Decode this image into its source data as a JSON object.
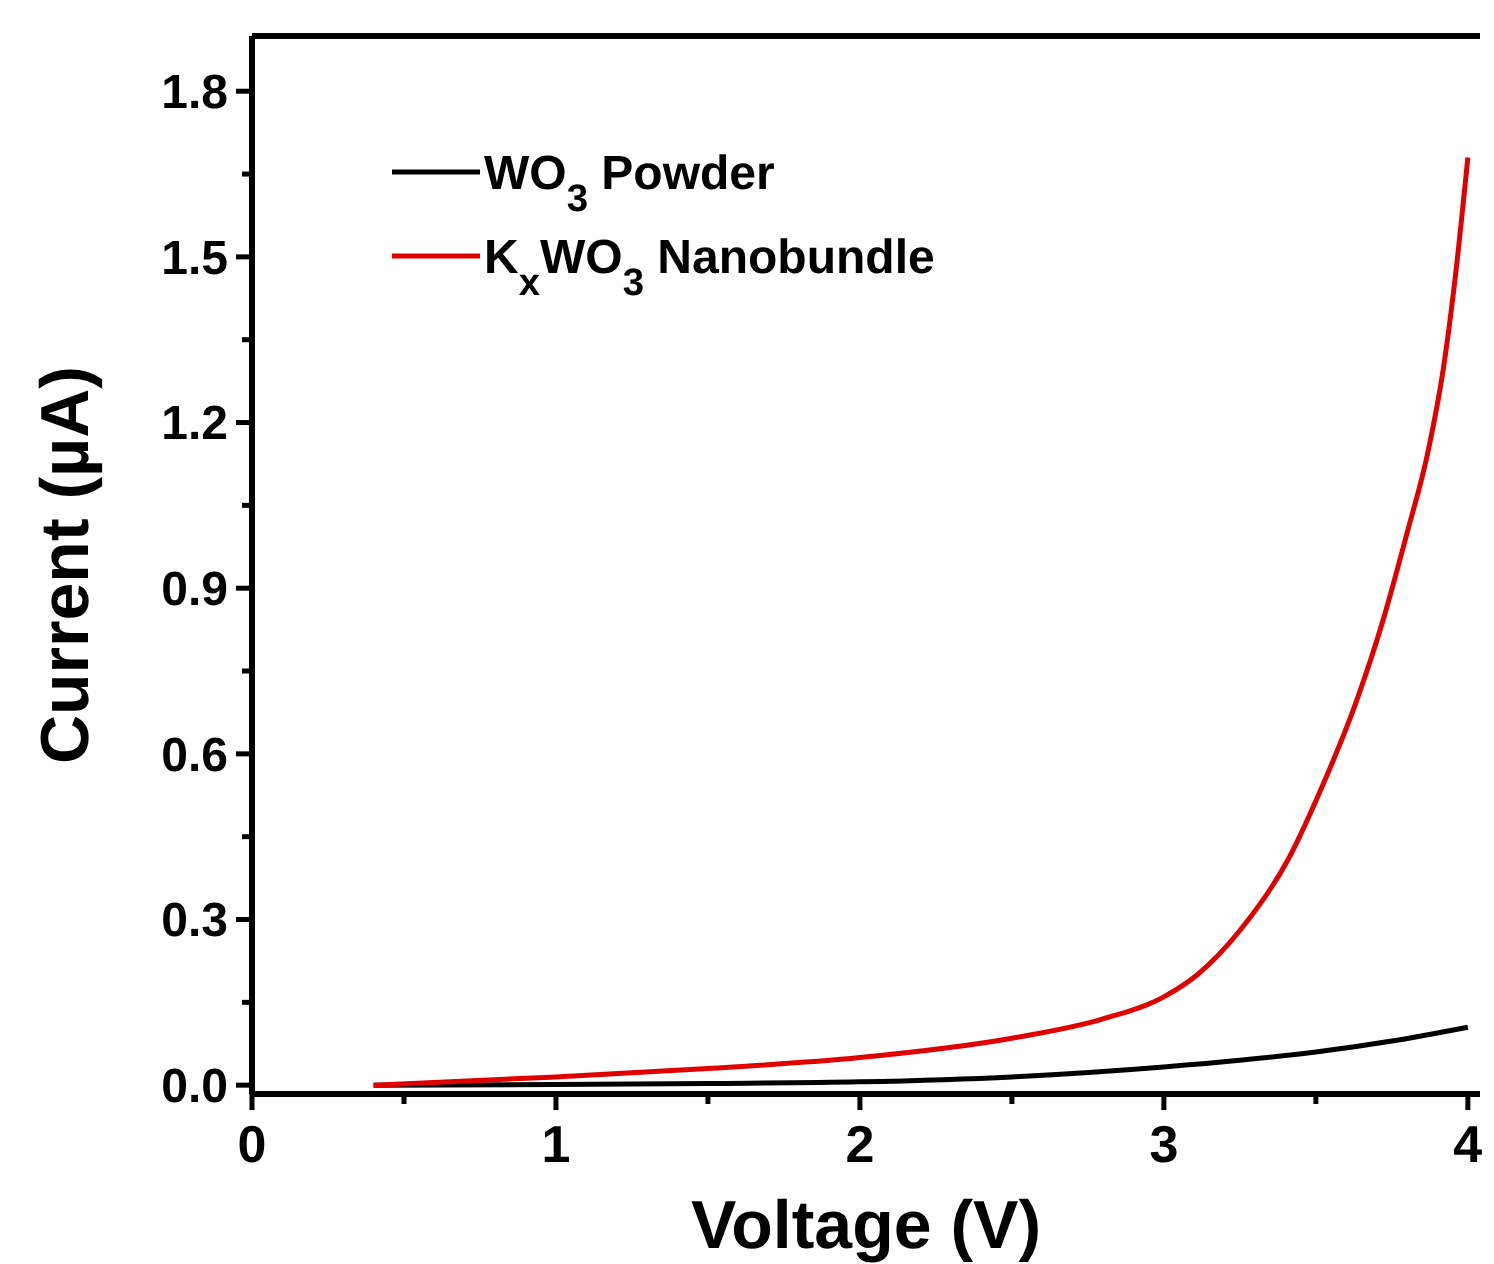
{
  "chart_data": {
    "type": "line",
    "xlabel": "Voltage (V)",
    "ylabel": "Current (µA)",
    "xlim": [
      0,
      4.04
    ],
    "ylim": [
      -0.016,
      1.9
    ],
    "xticks": [
      0,
      {
        "value": 0.5,
        "label": null
      },
      1,
      {
        "value": 1.5,
        "label": null
      },
      2,
      {
        "value": 2.5,
        "label": null
      },
      3,
      {
        "value": 3.5,
        "label": null
      },
      4
    ],
    "yticks": [
      "0.0",
      {
        "value": 0.15,
        "label": null
      },
      {
        "value": 0.3,
        "label": "0.3"
      },
      {
        "value": 0.45,
        "label": null
      },
      {
        "value": 0.6,
        "label": "0.6"
      },
      {
        "value": 0.75,
        "label": null
      },
      {
        "value": 0.9,
        "label": "0.9"
      },
      {
        "value": 1.05,
        "label": null
      },
      {
        "value": 1.2,
        "label": "1.2"
      },
      {
        "value": 1.35,
        "label": null
      },
      {
        "value": 1.5,
        "label": "1.5"
      },
      {
        "value": 1.65,
        "label": null
      },
      {
        "value": 1.8,
        "label": "1.8"
      }
    ],
    "legend": "top left",
    "grid": false,
    "line_style": "solid",
    "series": [
      {
        "name": "WO$_{3}$ Powder",
        "color": "#000000",
        "x": [
          0.4,
          1,
          1.5,
          2,
          2.5,
          3,
          3.25,
          3.5,
          3.75,
          4
        ],
        "values": [
          0,
          0.001,
          0.003,
          0.006,
          0.015,
          0.033,
          0.045,
          0.06,
          0.08,
          0.105
        ]
      },
      {
        "name": "K$_{x}$WO$_{3}$ Nanobundle",
        "color": "#e00000",
        "x": [
          0.4,
          1,
          1.5,
          2,
          2.5,
          2.8,
          3,
          3.11,
          3.25,
          3.41,
          3.52,
          3.63,
          3.72,
          3.8,
          3.87,
          3.92,
          3.96,
          4
        ],
        "values": [
          0,
          0.015,
          0.03,
          0.05,
          0.085,
          0.12,
          0.16,
          0.2,
          0.28,
          0.41,
          0.54,
          0.69,
          0.84,
          1.0,
          1.15,
          1.3,
          1.47,
          1.68
        ]
      }
    ]
  }
}
